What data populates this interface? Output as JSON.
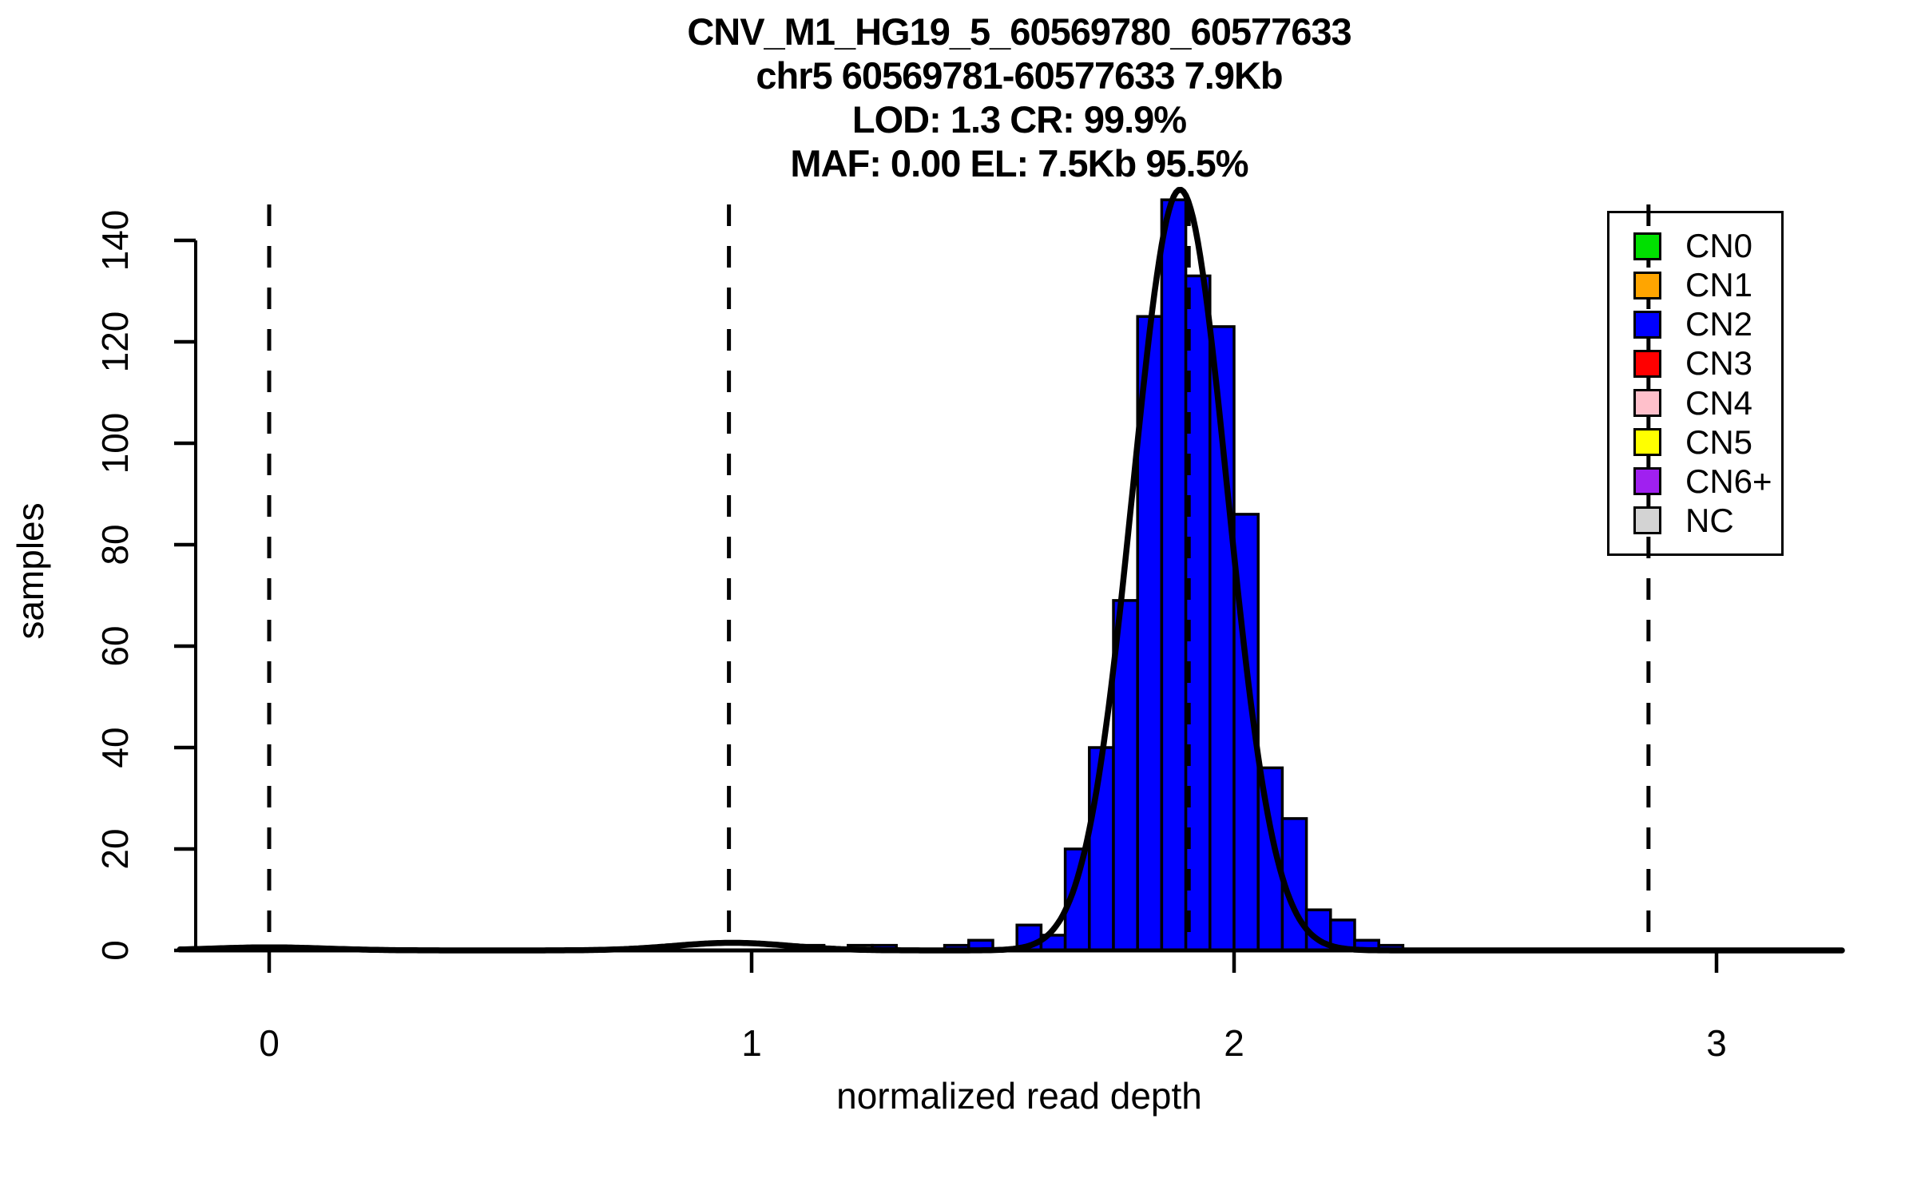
{
  "chart_data": {
    "type": "bar",
    "variant": "histogram-with-density-curve",
    "title_lines": [
      "CNV_M1_HG19_5_60569780_60577633",
      "chr5 60569781-60577633 7.9Kb",
      "LOD: 1.3 CR: 99.9%",
      "MAF: 0.00 EL: 7.5Kb 95.5%"
    ],
    "xlabel": "normalized read depth",
    "ylabel": "samples",
    "x_ticks": [
      0,
      1,
      2,
      3
    ],
    "y_ticks": [
      0,
      20,
      40,
      60,
      80,
      100,
      120,
      140
    ],
    "xlim": [
      -0.185,
      3.26
    ],
    "ylim": [
      0,
      150
    ],
    "grid": false,
    "bin_width": 0.05,
    "bars": [
      {
        "x": 1.1,
        "count": 1,
        "cn": "CN1"
      },
      {
        "x": 1.2,
        "count": 1,
        "cn": "NC"
      },
      {
        "x": 1.25,
        "count": 1,
        "cn": "CN2"
      },
      {
        "x": 1.4,
        "count": 1,
        "cn": "CN2"
      },
      {
        "x": 1.45,
        "count": 2,
        "cn": "CN2"
      },
      {
        "x": 1.55,
        "count": 5,
        "cn": "CN2"
      },
      {
        "x": 1.6,
        "count": 3,
        "cn": "CN2"
      },
      {
        "x": 1.65,
        "count": 20,
        "cn": "CN2"
      },
      {
        "x": 1.7,
        "count": 40,
        "cn": "CN2"
      },
      {
        "x": 1.75,
        "count": 69,
        "cn": "CN2"
      },
      {
        "x": 1.8,
        "count": 125,
        "cn": "CN2"
      },
      {
        "x": 1.85,
        "count": 148,
        "cn": "CN2"
      },
      {
        "x": 1.9,
        "count": 133,
        "cn": "CN2"
      },
      {
        "x": 1.95,
        "count": 123,
        "cn": "CN2"
      },
      {
        "x": 2.0,
        "count": 86,
        "cn": "CN2"
      },
      {
        "x": 2.05,
        "count": 36,
        "cn": "CN2"
      },
      {
        "x": 2.1,
        "count": 26,
        "cn": "CN2"
      },
      {
        "x": 2.15,
        "count": 8,
        "cn": "CN2"
      },
      {
        "x": 2.2,
        "count": 6,
        "cn": "CN2"
      },
      {
        "x": 2.25,
        "count": 2,
        "cn": "CN2"
      },
      {
        "x": 2.3,
        "count": 1,
        "cn": "CN2"
      }
    ],
    "dashed_vlines_x": [
      0.0,
      0.953,
      1.906,
      2.859
    ],
    "density_curve": {
      "color": "#000000",
      "components": [
        {
          "mu": 0.0,
          "sigma": 0.12,
          "amp": 0.6
        },
        {
          "mu": 0.96,
          "sigma": 0.12,
          "amp": 1.5
        },
        {
          "mu": 1.888,
          "sigma": 0.098,
          "amp": 150
        }
      ]
    },
    "legend": {
      "position": "top-right",
      "items": [
        {
          "label": "CN0",
          "color": "#00E000"
        },
        {
          "label": "CN1",
          "color": "#FFA500"
        },
        {
          "label": "CN2",
          "color": "#0000FF"
        },
        {
          "label": "CN3",
          "color": "#FF0000"
        },
        {
          "label": "CN4",
          "color": "#FFC0CB"
        },
        {
          "label": "CN5",
          "color": "#FFFF00"
        },
        {
          "label": "CN6+",
          "color": "#A020F0"
        },
        {
          "label": "NC",
          "color": "#D3D3D3"
        }
      ]
    },
    "colors": {
      "bar_fill_default": "#0000FF",
      "bar_border": "#000000",
      "axis": "#000000",
      "background": "#FFFFFF"
    }
  }
}
